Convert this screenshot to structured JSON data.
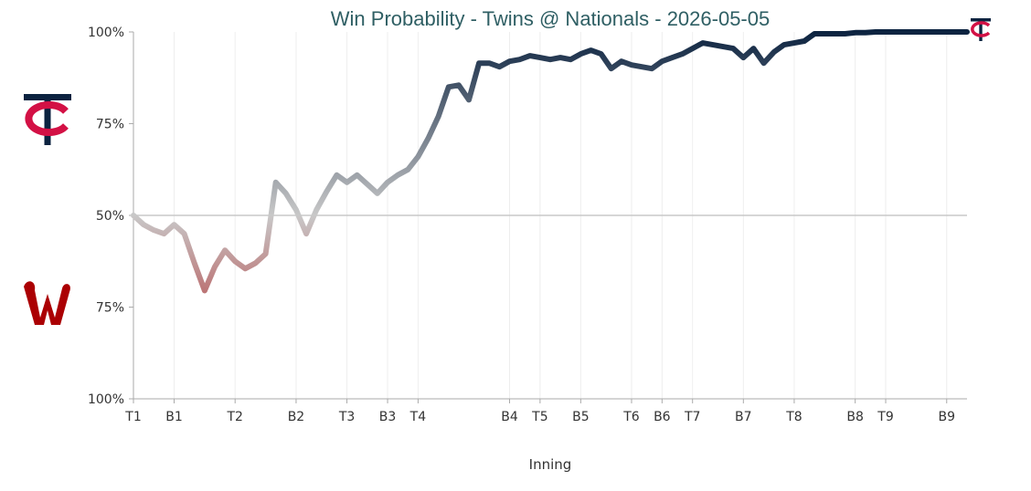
{
  "chart_data": {
    "type": "line",
    "title": "Win Probability - Twins @ Nationals - 2026-05-05",
    "xlabel": "Inning",
    "ylabel": "",
    "y_tick_labels": [
      "100%",
      "75%",
      "50%",
      "75%",
      "100%"
    ],
    "ylim": [
      -50,
      50
    ],
    "grid": "vertical",
    "teams": {
      "top": {
        "name": "Twins",
        "icon": "twins-tc-logo-icon",
        "color": "#0c2340"
      },
      "bottom": {
        "name": "Nationals",
        "icon": "nationals-w-logo-icon",
        "color": "#ab0003"
      }
    },
    "colors": {
      "twins": "#0c2340",
      "neutral": "#c8c8c8",
      "nationals": "#ab0003"
    },
    "x_ticks": [
      {
        "label": "T1",
        "x": 0
      },
      {
        "label": "B1",
        "x": 4
      },
      {
        "label": "T2",
        "x": 10
      },
      {
        "label": "B2",
        "x": 16
      },
      {
        "label": "T3",
        "x": 21
      },
      {
        "label": "B3",
        "x": 25
      },
      {
        "label": "T4",
        "x": 28
      },
      {
        "label": "B4",
        "x": 37
      },
      {
        "label": "T5",
        "x": 40
      },
      {
        "label": "B5",
        "x": 44
      },
      {
        "label": "T6",
        "x": 49
      },
      {
        "label": "B6",
        "x": 52
      },
      {
        "label": "T7",
        "x": 55
      },
      {
        "label": "B7",
        "x": 60
      },
      {
        "label": "T8",
        "x": 65
      },
      {
        "label": "B8",
        "x": 71
      },
      {
        "label": "T9",
        "x": 74
      },
      {
        "label": "B9",
        "x": 80
      }
    ],
    "xlim": [
      0,
      82
    ],
    "series": [
      {
        "values": [
          0,
          -2.5,
          -4,
          -5,
          -2.5,
          -5,
          -13,
          -20.5,
          -14,
          -9.5,
          -12.5,
          -14.5,
          -13,
          -10.5,
          9,
          6,
          1.5,
          -5,
          1.5,
          6.5,
          11,
          9,
          11,
          8.5,
          6,
          9,
          11,
          12.5,
          16,
          21,
          27,
          35,
          35.5,
          31.5,
          41.5,
          41.5,
          40.5,
          42,
          42.5,
          43.5,
          43,
          42.5,
          43,
          42.5,
          44,
          45,
          44,
          40,
          42,
          41,
          40.5,
          40,
          42,
          43,
          44,
          45.5,
          47,
          46.5,
          46,
          45.5,
          43,
          45.5,
          41.5,
          44.5,
          46.5,
          47,
          47.5,
          49.5,
          49.5,
          49.5,
          49.5,
          49.8,
          49.8,
          50,
          50,
          50,
          50,
          50,
          50,
          50,
          50,
          50,
          50
        ]
      }
    ]
  }
}
